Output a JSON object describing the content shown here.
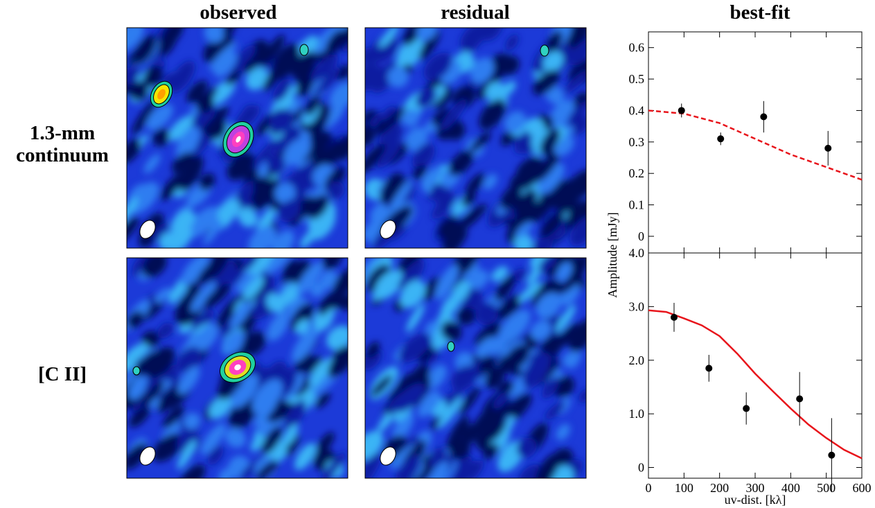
{
  "column_titles": [
    "observed",
    "residual",
    "best-fit"
  ],
  "row_labels": [
    "1.3-mm continuum",
    "[C II]"
  ],
  "y_axis_label": "Amplitude [mJy]",
  "x_axis_label": "uv-dist. [kλ]",
  "chart_data": [
    {
      "type": "scatter",
      "xlim": [
        0,
        600
      ],
      "ylim": [
        -0.053,
        0.65
      ],
      "xticks": [
        0,
        100,
        200,
        300,
        400,
        500,
        600
      ],
      "xtick_labels": false,
      "yticks": [
        0,
        0.1,
        0.2,
        0.3,
        0.4,
        0.5,
        0.6
      ],
      "points": {
        "color": "#000000",
        "x": [
          93,
          203,
          324,
          505
        ],
        "values": [
          0.4,
          0.31,
          0.38,
          0.28
        ],
        "errors": [
          0.022,
          0.02,
          0.05,
          0.055
        ]
      },
      "model": {
        "color": "#e8141b",
        "dashed": true,
        "x": [
          0,
          100,
          200,
          300,
          400,
          500,
          600
        ],
        "values": [
          0.4,
          0.39,
          0.36,
          0.31,
          0.26,
          0.22,
          0.18
        ]
      }
    },
    {
      "type": "scatter",
      "xlim": [
        0,
        600
      ],
      "ylim": [
        -0.2,
        4.0
      ],
      "xticks": [
        0,
        100,
        200,
        300,
        400,
        500,
        600
      ],
      "xtick_labels": true,
      "yticks": [
        0,
        {
          "value": 1,
          "label": "1.0"
        },
        {
          "value": 2,
          "label": "2.0"
        },
        {
          "value": 3,
          "label": "3.0"
        },
        {
          "value": 4,
          "label": "4.0"
        }
      ],
      "points": {
        "color": "#000000",
        "x": [
          72,
          170,
          275,
          425,
          515
        ],
        "values": [
          2.8,
          1.85,
          1.1,
          1.28,
          0.23
        ],
        "errors": [
          0.27,
          0.25,
          0.3,
          0.5,
          0.69
        ]
      },
      "model": {
        "color": "#e8141b",
        "dashed": false,
        "x": [
          0,
          50,
          100,
          150,
          200,
          250,
          300,
          350,
          400,
          450,
          500,
          550,
          600
        ],
        "values": [
          2.93,
          2.9,
          2.78,
          2.65,
          2.45,
          2.12,
          1.75,
          1.42,
          1.1,
          0.8,
          0.55,
          0.33,
          0.17
        ]
      }
    }
  ]
}
